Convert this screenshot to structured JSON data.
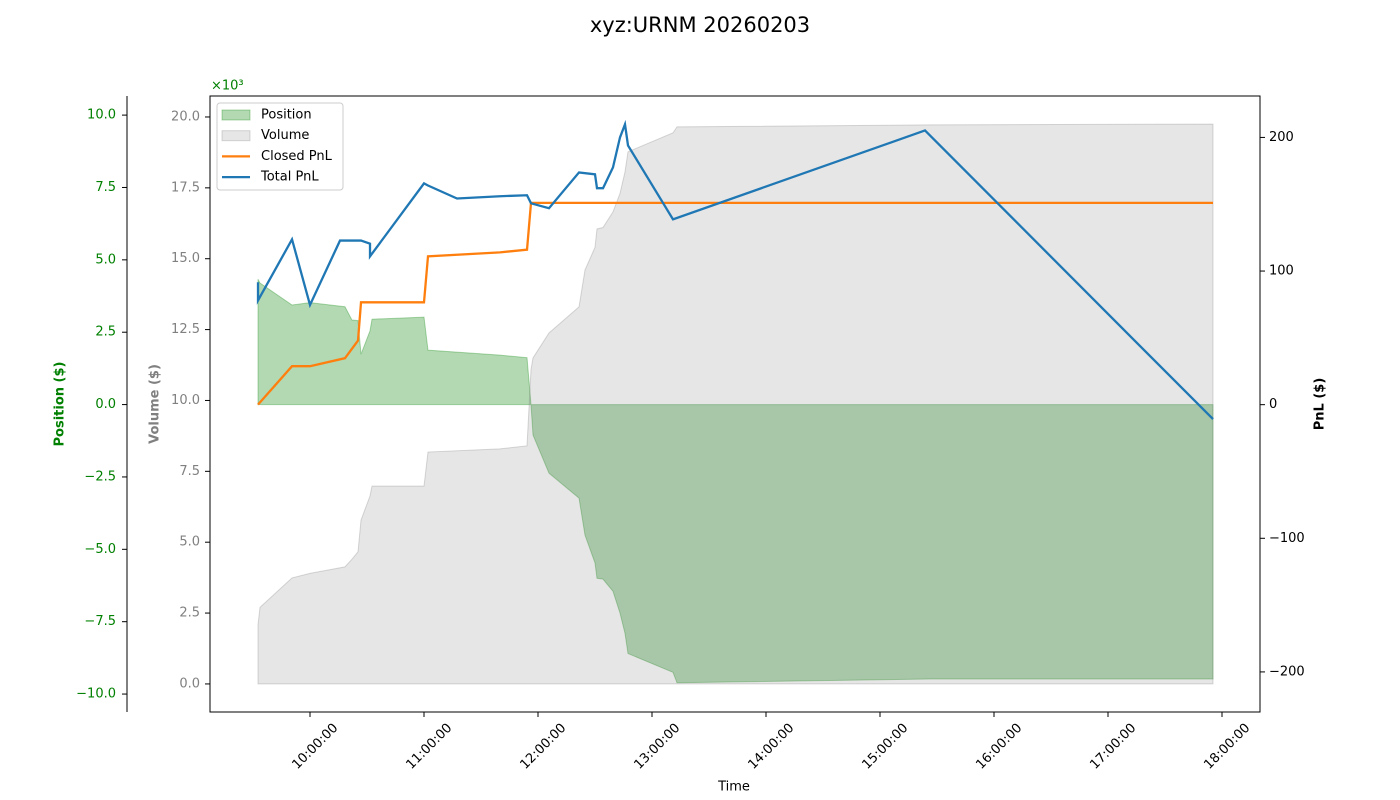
{
  "chart_data": {
    "type": "line",
    "title": "xyz:URNM 20260203",
    "x_label": "Time",
    "y_label": "Position ($)",
    "y2_label": "Volume ($)",
    "y3_label": "PnL ($)",
    "y_offset_text": "×10³",
    "xlim": [
      "09:07:22",
      "18:20:00"
    ],
    "xticks": [
      "10:00:00",
      "11:00:00",
      "12:00:00",
      "13:00:00",
      "14:00:00",
      "15:00:00",
      "16:00:00",
      "17:00:00",
      "18:00:00"
    ],
    "ylim": [
      -10620,
      10660
    ],
    "yticks": [
      {
        "value": 10000,
        "label": "10.0"
      },
      {
        "value": 7500,
        "label": "7.5"
      },
      {
        "value": 5000,
        "label": "5.0"
      },
      {
        "value": 2500,
        "label": "2.5"
      },
      {
        "value": 0,
        "label": "0.0"
      },
      {
        "value": -2500,
        "label": "−2.5"
      },
      {
        "value": -5000,
        "label": "−5.0"
      },
      {
        "value": -7500,
        "label": "−7.5"
      },
      {
        "value": -10000,
        "label": "−10.0"
      }
    ],
    "y2lim": [
      -990,
      20740
    ],
    "y2ticks": [
      {
        "value": 0,
        "label": "0.0"
      },
      {
        "value": 2500,
        "label": "2.5"
      },
      {
        "value": 5000,
        "label": "5.0"
      },
      {
        "value": 7500,
        "label": "7.5"
      },
      {
        "value": 10000,
        "label": "10.0"
      },
      {
        "value": 12500,
        "label": "12.5"
      },
      {
        "value": 15000,
        "label": "15.0"
      },
      {
        "value": 17500,
        "label": "17.5"
      },
      {
        "value": 20000,
        "label": "20.0"
      }
    ],
    "y3lim": [
      -230,
      231
    ],
    "y3ticks": [
      200,
      100,
      0,
      {
        "value": -100,
        "label": "−100"
      },
      {
        "value": -200,
        "label": "−200"
      }
    ],
    "legend": "upper left",
    "series": [
      {
        "name": "Position",
        "type": "area",
        "axis": "y",
        "color": "#008000",
        "x": [
          "09:32:38",
          "09:33:41",
          "09:50:32",
          "10:00:00",
          "10:18:25",
          "10:22:06",
          "10:25:16",
          "10:26:51",
          "10:31:35",
          "10:32:38",
          "11:00:00",
          "11:02:06",
          "11:40:00",
          "11:54:13",
          "11:56:19",
          "11:57:22",
          "12:05:47",
          "12:21:35",
          "12:24:44",
          "12:30:00",
          "12:31:03",
          "12:34:13",
          "12:39:28",
          "12:43:09",
          "12:45:47",
          "12:47:22",
          "13:11:03",
          "13:13:09",
          "15:26:19",
          "17:55:16"
        ],
        "values": [
          4330,
          4200,
          3440,
          3520,
          3380,
          2920,
          2900,
          1740,
          2550,
          2950,
          3020,
          1880,
          1710,
          1620,
          0,
          -1050,
          -2370,
          -3230,
          -4510,
          -5470,
          -6000,
          -6030,
          -6450,
          -7200,
          -7900,
          -8600,
          -9250,
          -9610,
          -9480,
          -9480
        ]
      },
      {
        "name": "Volume",
        "type": "area",
        "axis": "y2",
        "color": "#808080",
        "x": [
          "09:32:38",
          "09:33:41",
          "09:50:32",
          "10:00:00",
          "10:18:25",
          "10:22:06",
          "10:25:16",
          "10:26:51",
          "10:31:35",
          "10:32:38",
          "11:00:00",
          "11:02:06",
          "11:40:00",
          "11:54:13",
          "11:56:19",
          "11:57:22",
          "12:05:47",
          "12:21:35",
          "12:24:44",
          "12:30:00",
          "12:31:03",
          "12:34:13",
          "12:39:28",
          "12:43:09",
          "12:45:47",
          "12:47:22",
          "13:11:03",
          "13:13:09",
          "15:26:19",
          "17:55:16"
        ],
        "values": [
          2080,
          2700,
          3740,
          3900,
          4130,
          4400,
          4660,
          5780,
          6630,
          6980,
          6980,
          8180,
          8290,
          8400,
          11080,
          11500,
          12380,
          13300,
          14600,
          15400,
          16050,
          16100,
          16650,
          17300,
          18060,
          18770,
          19440,
          19650,
          19720,
          19750
        ]
      },
      {
        "name": "Closed PnL",
        "type": "line",
        "axis": "y3",
        "color": "#ff7f0e",
        "x": [
          "09:32:38",
          "09:50:32",
          "10:00:00",
          "10:18:25",
          "10:25:16",
          "10:26:51",
          "11:00:00",
          "11:02:06",
          "11:40:00",
          "11:54:13",
          "11:56:19",
          "17:55:16"
        ],
        "values": [
          0,
          28.8,
          28.8,
          34.8,
          48,
          76.6,
          76.6,
          111,
          114,
          116,
          151,
          151
        ]
      },
      {
        "name": "Total PnL",
        "type": "line",
        "axis": "y3",
        "color": "#1f77b4",
        "x": [
          "09:32:38",
          "09:32:38",
          "09:50:32",
          "10:00:00",
          "10:15:47",
          "10:26:51",
          "10:31:35",
          "10:31:35",
          "11:00:00",
          "11:02:06",
          "11:17:22",
          "11:40:00",
          "11:54:13",
          "11:56:19",
          "12:05:47",
          "12:21:35",
          "12:30:00",
          "12:31:03",
          "12:34:13",
          "12:39:28",
          "12:43:09",
          "12:45:47",
          "12:47:22",
          "13:11:03",
          "15:23:41",
          "17:55:16"
        ],
        "values": [
          91.6,
          78,
          123.7,
          74.6,
          122.8,
          122.8,
          120.5,
          111,
          165.6,
          164,
          154.3,
          156,
          156.7,
          150.7,
          147,
          173.8,
          172.4,
          162,
          162,
          177.6,
          200,
          209.8,
          194,
          138.7,
          205.2,
          -10.8
        ]
      }
    ]
  }
}
